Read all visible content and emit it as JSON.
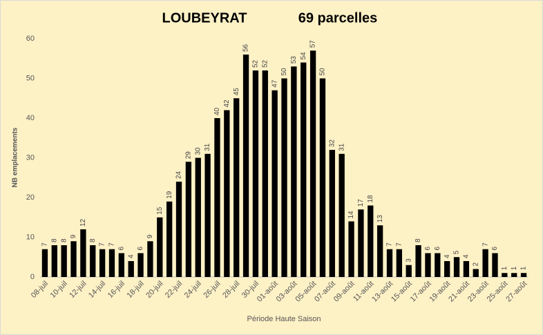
{
  "chart_data": {
    "type": "bar",
    "title": "LOUBEYRAT",
    "subtitle": "69 parcelles",
    "x_label": "Période Haute Saison",
    "y_label": "NB emplacements",
    "categories": [
      "08-juil",
      null,
      "10-juil",
      null,
      "12-juil",
      null,
      "14-juil",
      null,
      "16-juil",
      null,
      "18-juil",
      null,
      "20-juil",
      null,
      "22-juil",
      null,
      "24-juil",
      null,
      "26-juil",
      null,
      "28-juil",
      null,
      "30-juil",
      null,
      "01-août",
      null,
      "03-août",
      null,
      "05-août",
      null,
      "07-août",
      null,
      "09-août",
      null,
      "11-août",
      null,
      "13-août",
      null,
      "15-août",
      null,
      "17-août",
      null,
      "19-août",
      null,
      "21-août",
      null,
      "23-août",
      null,
      "25-août",
      null,
      "27-août"
    ],
    "values": [
      7,
      8,
      8,
      9,
      12,
      8,
      7,
      7,
      6,
      4,
      6,
      9,
      15,
      19,
      24,
      29,
      30,
      31,
      40,
      42,
      45,
      56,
      52,
      52,
      47,
      50,
      53,
      54,
      57,
      50,
      32,
      31,
      14,
      17,
      18,
      13,
      7,
      7,
      3,
      8,
      6,
      6,
      4,
      5,
      4,
      2,
      7,
      6,
      1,
      1,
      1
    ],
    "color": "#000000",
    "ylim": [
      0,
      60
    ],
    "yticks": [
      0,
      10,
      20,
      30,
      40,
      50,
      60
    ],
    "grid": false
  }
}
